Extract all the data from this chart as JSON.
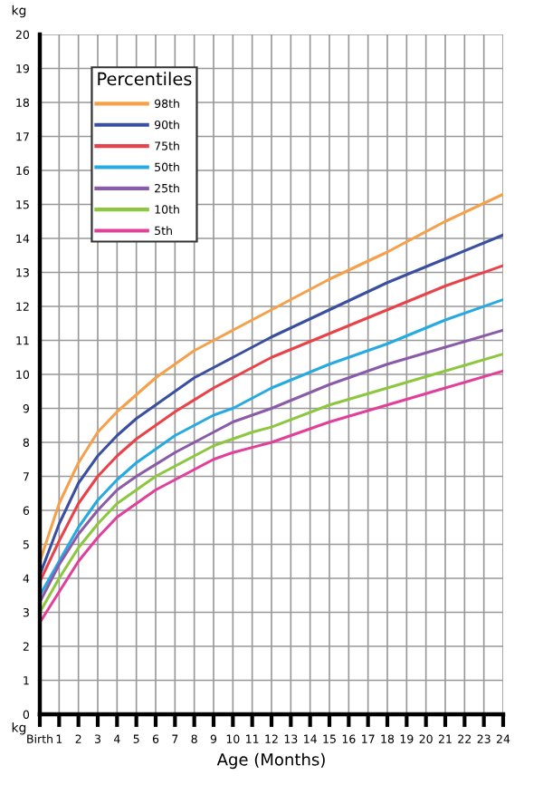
{
  "chart_data": {
    "type": "line",
    "xlabel": "Age (Months)",
    "ylabel": "kg",
    "annotations": [
      "kg"
    ],
    "legend_title": "Percentiles",
    "legend": "top left",
    "grid": true,
    "marker": "none",
    "line_style": "solid",
    "x": [
      0,
      1,
      2,
      3,
      4,
      5,
      6,
      7,
      8,
      9,
      10,
      11,
      12,
      15,
      18,
      21,
      24
    ],
    "xlim": [
      0,
      24
    ],
    "xticks": [
      {
        "value": 0,
        "label": "Birth"
      },
      1,
      2,
      3,
      4,
      5,
      6,
      7,
      8,
      9,
      10,
      11,
      12,
      13,
      14,
      15,
      16,
      17,
      18,
      19,
      20,
      21,
      22,
      23,
      24
    ],
    "ylim": [
      0,
      20
    ],
    "yticks": [
      0,
      1,
      2,
      3,
      4,
      5,
      6,
      7,
      8,
      9,
      10,
      11,
      12,
      13,
      14,
      15,
      16,
      17,
      18,
      19,
      20
    ],
    "series": [
      {
        "name": "98th",
        "color": "#f5a04a",
        "values": [
          4.5,
          6.2,
          7.4,
          8.3,
          8.9,
          9.4,
          9.9,
          10.3,
          10.7,
          11.0,
          11.3,
          11.6,
          11.9,
          12.8,
          13.6,
          14.5,
          15.3
        ]
      },
      {
        "name": "90th",
        "color": "#3a4fa0",
        "values": [
          4.1,
          5.6,
          6.8,
          7.6,
          8.2,
          8.7,
          9.1,
          9.5,
          9.9,
          10.2,
          10.5,
          10.8,
          11.1,
          11.9,
          12.7,
          13.4,
          14.1
        ]
      },
      {
        "name": "75th",
        "color": "#e8434a",
        "values": [
          3.9,
          5.1,
          6.2,
          7.0,
          7.6,
          8.1,
          8.5,
          8.9,
          9.25,
          9.6,
          9.9,
          10.2,
          10.5,
          11.2,
          11.9,
          12.6,
          13.2
        ]
      },
      {
        "name": "50th",
        "color": "#27a9e1",
        "values": [
          3.5,
          4.5,
          5.5,
          6.3,
          6.9,
          7.4,
          7.8,
          8.2,
          8.5,
          8.8,
          9.0,
          9.3,
          9.6,
          10.3,
          10.9,
          11.6,
          12.2
        ]
      },
      {
        "name": "25th",
        "color": "#8a5ca8",
        "values": [
          3.3,
          4.4,
          5.3,
          6.0,
          6.6,
          7.0,
          7.35,
          7.7,
          8.0,
          8.3,
          8.6,
          8.8,
          9.0,
          9.7,
          10.3,
          10.8,
          11.3
        ]
      },
      {
        "name": "10th",
        "color": "#8dc63f",
        "values": [
          3.0,
          4.0,
          4.9,
          5.6,
          6.2,
          6.6,
          7.0,
          7.3,
          7.6,
          7.9,
          8.1,
          8.3,
          8.45,
          9.1,
          9.6,
          10.1,
          10.6
        ]
      },
      {
        "name": "5th",
        "color": "#e0409a",
        "values": [
          2.7,
          3.6,
          4.5,
          5.2,
          5.8,
          6.2,
          6.6,
          6.9,
          7.2,
          7.5,
          7.7,
          7.85,
          8.0,
          8.6,
          9.1,
          9.6,
          10.1
        ]
      }
    ]
  }
}
